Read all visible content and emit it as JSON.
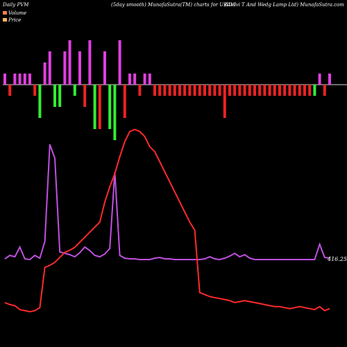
{
  "header": {
    "left": "Daily PVM",
    "center": "(5day smooth) MunafaSutra(TM) charts for URAVI",
    "right": "(Uravi T And Wedg Lamp Ltd) MunafaSutra.com"
  },
  "legend": [
    {
      "label": "Volume",
      "color": "#ff7f50"
    },
    {
      "label": "Price",
      "color": "#ffb266"
    }
  ],
  "colors": {
    "background": "#000000",
    "baseline": "#d8d8d8",
    "bar_up": "#e040e0",
    "bar_down_green": "#33ee33",
    "bar_down_red": "#ee2222",
    "price_line": "#ff2a2a",
    "volume_line": "#c050e0"
  },
  "chart_data": {
    "type": "line",
    "last_value_label": "416.25",
    "bars": [
      [
        1,
        1,
        1
      ],
      [
        2,
        -1,
        1
      ],
      [
        3,
        1,
        1
      ],
      [
        4,
        1,
        1
      ],
      [
        5,
        1,
        1
      ],
      [
        6,
        1,
        1
      ],
      [
        7,
        -1,
        1
      ],
      [
        8,
        -3,
        0
      ],
      [
        9,
        2,
        1
      ],
      [
        10,
        3,
        1
      ],
      [
        11,
        -2,
        0
      ],
      [
        12,
        -2,
        0
      ],
      [
        13,
        3,
        1
      ],
      [
        14,
        4,
        1
      ],
      [
        15,
        -1,
        0
      ],
      [
        16,
        3,
        1
      ],
      [
        17,
        -2,
        1
      ],
      [
        18,
        4,
        1
      ],
      [
        19,
        -4,
        0
      ],
      [
        20,
        -4,
        1
      ],
      [
        21,
        3,
        1
      ],
      [
        22,
        -4,
        0
      ],
      [
        23,
        -5,
        0
      ],
      [
        24,
        4,
        1
      ],
      [
        25,
        -3,
        1
      ],
      [
        26,
        1,
        1
      ],
      [
        27,
        1,
        1
      ],
      [
        28,
        -1,
        1
      ],
      [
        29,
        1,
        1
      ],
      [
        30,
        1,
        1
      ],
      [
        31,
        -1,
        1
      ],
      [
        32,
        -1,
        1
      ],
      [
        33,
        -1,
        1
      ],
      [
        34,
        -1,
        1
      ],
      [
        35,
        -1,
        1
      ],
      [
        36,
        -1,
        1
      ],
      [
        37,
        -1,
        1
      ],
      [
        38,
        -1,
        1
      ],
      [
        39,
        -1,
        1
      ],
      [
        40,
        -1,
        1
      ],
      [
        41,
        -1,
        1
      ],
      [
        42,
        -1,
        1
      ],
      [
        43,
        -1,
        1
      ],
      [
        44,
        -1,
        1
      ],
      [
        45,
        -3,
        1
      ],
      [
        46,
        -1,
        1
      ],
      [
        47,
        -1,
        1
      ],
      [
        48,
        -1,
        1
      ],
      [
        49,
        -1,
        1
      ],
      [
        50,
        -1,
        1
      ],
      [
        51,
        -1,
        1
      ],
      [
        52,
        -1,
        1
      ],
      [
        53,
        -1,
        1
      ],
      [
        54,
        -1,
        1
      ],
      [
        55,
        -1,
        1
      ],
      [
        56,
        -1,
        1
      ],
      [
        57,
        -1,
        1
      ],
      [
        58,
        -1,
        1
      ],
      [
        59,
        -1,
        1
      ],
      [
        60,
        -1,
        1
      ],
      [
        61,
        -1,
        1
      ],
      [
        62,
        -1,
        1
      ],
      [
        63,
        -1,
        0
      ],
      [
        64,
        1,
        1
      ],
      [
        65,
        -1,
        1
      ],
      [
        66,
        1,
        1
      ]
    ],
    "price": [
      [
        1,
        20
      ],
      [
        2,
        18
      ],
      [
        3,
        17
      ],
      [
        4,
        13
      ],
      [
        5,
        12
      ],
      [
        6,
        11
      ],
      [
        7,
        12
      ],
      [
        8,
        15
      ],
      [
        9,
        55
      ],
      [
        10,
        57
      ],
      [
        11,
        60
      ],
      [
        12,
        65
      ],
      [
        13,
        70
      ],
      [
        14,
        72
      ],
      [
        15,
        75
      ],
      [
        16,
        80
      ],
      [
        17,
        85
      ],
      [
        18,
        90
      ],
      [
        19,
        95
      ],
      [
        20,
        100
      ],
      [
        21,
        120
      ],
      [
        22,
        135
      ],
      [
        23,
        148
      ],
      [
        24,
        165
      ],
      [
        25,
        180
      ],
      [
        26,
        190
      ],
      [
        27,
        192
      ],
      [
        28,
        190
      ],
      [
        29,
        185
      ],
      [
        30,
        175
      ],
      [
        31,
        170
      ],
      [
        32,
        160
      ],
      [
        33,
        150
      ],
      [
        34,
        140
      ],
      [
        35,
        130
      ],
      [
        36,
        120
      ],
      [
        37,
        110
      ],
      [
        38,
        100
      ],
      [
        39,
        92
      ],
      [
        40,
        30
      ],
      [
        41,
        28
      ],
      [
        42,
        26
      ],
      [
        43,
        25
      ],
      [
        44,
        24
      ],
      [
        45,
        23
      ],
      [
        46,
        22
      ],
      [
        47,
        20
      ],
      [
        48,
        21
      ],
      [
        49,
        22
      ],
      [
        50,
        21
      ],
      [
        51,
        20
      ],
      [
        52,
        19
      ],
      [
        53,
        18
      ],
      [
        54,
        17
      ],
      [
        55,
        16
      ],
      [
        56,
        16
      ],
      [
        57,
        15
      ],
      [
        58,
        14
      ],
      [
        59,
        15
      ],
      [
        60,
        16
      ],
      [
        61,
        15
      ],
      [
        62,
        14
      ],
      [
        63,
        13
      ],
      [
        64,
        16
      ],
      [
        65,
        12
      ],
      [
        66,
        14
      ]
    ],
    "volume": [
      [
        1,
        35
      ],
      [
        2,
        40
      ],
      [
        3,
        38
      ],
      [
        4,
        52
      ],
      [
        5,
        35
      ],
      [
        6,
        34
      ],
      [
        7,
        40
      ],
      [
        8,
        36
      ],
      [
        9,
        60
      ],
      [
        10,
        200
      ],
      [
        11,
        180
      ],
      [
        12,
        45
      ],
      [
        13,
        43
      ],
      [
        14,
        41
      ],
      [
        15,
        38
      ],
      [
        16,
        44
      ],
      [
        17,
        52
      ],
      [
        18,
        47
      ],
      [
        19,
        40
      ],
      [
        20,
        38
      ],
      [
        21,
        42
      ],
      [
        22,
        50
      ],
      [
        23,
        160
      ],
      [
        24,
        40
      ],
      [
        25,
        36
      ],
      [
        26,
        35
      ],
      [
        27,
        35
      ],
      [
        28,
        34
      ],
      [
        29,
        34
      ],
      [
        30,
        34
      ],
      [
        31,
        36
      ],
      [
        32,
        37
      ],
      [
        33,
        35
      ],
      [
        34,
        35
      ],
      [
        35,
        34
      ],
      [
        36,
        34
      ],
      [
        37,
        34
      ],
      [
        38,
        34
      ],
      [
        39,
        34
      ],
      [
        40,
        34
      ],
      [
        41,
        35
      ],
      [
        42,
        38
      ],
      [
        43,
        35
      ],
      [
        44,
        34
      ],
      [
        45,
        36
      ],
      [
        46,
        39
      ],
      [
        47,
        43
      ],
      [
        48,
        38
      ],
      [
        49,
        41
      ],
      [
        50,
        36
      ],
      [
        51,
        34
      ],
      [
        52,
        34
      ],
      [
        53,
        34
      ],
      [
        54,
        34
      ],
      [
        55,
        34
      ],
      [
        56,
        34
      ],
      [
        57,
        34
      ],
      [
        58,
        34
      ],
      [
        59,
        34
      ],
      [
        60,
        34
      ],
      [
        61,
        34
      ],
      [
        62,
        34
      ],
      [
        63,
        34
      ],
      [
        64,
        56
      ],
      [
        65,
        37
      ],
      [
        66,
        36
      ]
    ]
  }
}
